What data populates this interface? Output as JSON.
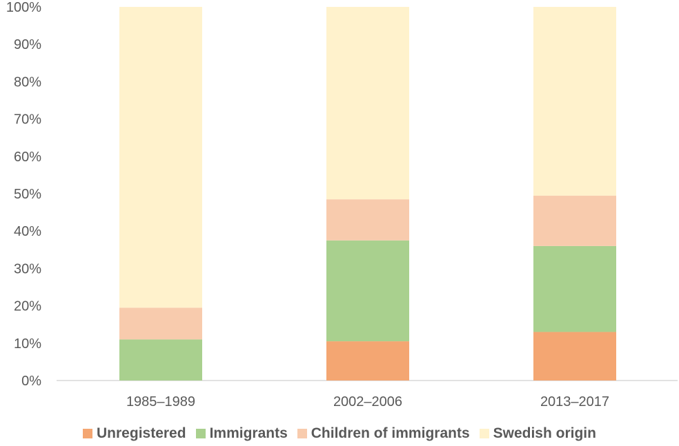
{
  "chart_data": {
    "type": "bar",
    "stacked": true,
    "categories": [
      "1985–1989",
      "2002–2006",
      "2013–2017"
    ],
    "series": [
      {
        "name": "Unregistered",
        "color": "#f4a672",
        "values": [
          0,
          10.5,
          13
        ]
      },
      {
        "name": "Immigrants",
        "color": "#a9d08e",
        "values": [
          11,
          27,
          23
        ]
      },
      {
        "name": "Children of immigrants",
        "color": "#f8cbad",
        "values": [
          8.5,
          11,
          13.5
        ]
      },
      {
        "name": "Swedish origin",
        "color": "#fff2cc",
        "values": [
          80.5,
          51.5,
          50.5
        ]
      }
    ],
    "ylim": [
      0,
      100
    ],
    "yticks": [
      "0%",
      "10%",
      "20%",
      "30%",
      "40%",
      "50%",
      "60%",
      "70%",
      "80%",
      "90%",
      "100%"
    ],
    "grid": false,
    "legend_position": "bottom"
  }
}
